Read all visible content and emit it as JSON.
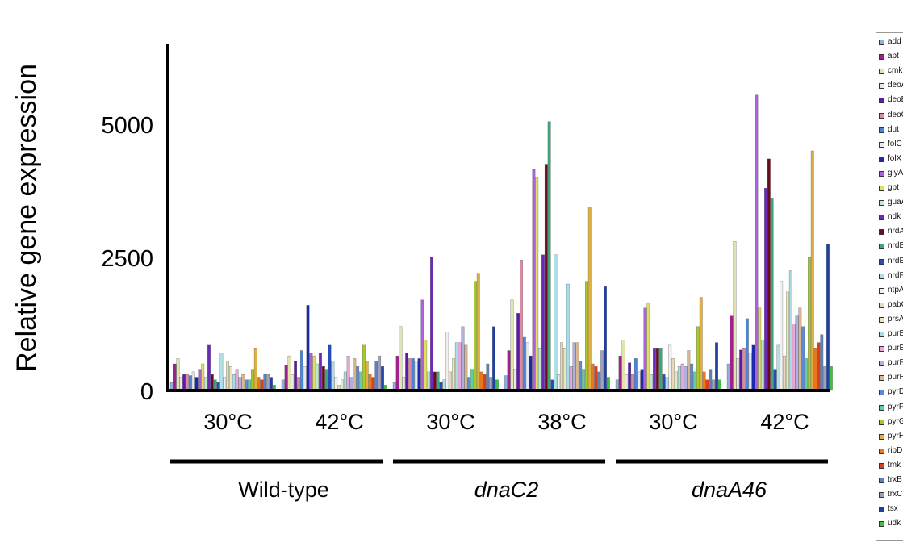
{
  "chart_data": {
    "type": "bar",
    "ylabel": "Relative gene expression",
    "ylim": [
      0,
      6500
    ],
    "yticks": [
      0,
      2500,
      5000
    ],
    "grid": false,
    "legend_position": "right",
    "groups": [
      {
        "label": "Wild-type",
        "italic": false,
        "conditions": [
          "30°C",
          "42°C"
        ]
      },
      {
        "label": "dnaC2",
        "italic": true,
        "conditions": [
          "30°C",
          "38°C"
        ]
      },
      {
        "label": "dnaA46",
        "italic": true,
        "conditions": [
          "30°C",
          "42°C"
        ]
      }
    ],
    "categories": [
      "Wild-type 30°C",
      "Wild-type 42°C",
      "dnaC2 30°C",
      "dnaC2 38°C",
      "dnaA46 30°C",
      "dnaA46 42°C"
    ],
    "series": [
      {
        "name": "add",
        "color": "#8fb1d8",
        "values": [
          150,
          200,
          150,
          280,
          200,
          500
        ]
      },
      {
        "name": "apt",
        "color": "#a0208f",
        "values": [
          500,
          480,
          650,
          750,
          650,
          1400
        ]
      },
      {
        "name": "cmk",
        "color": "#e3e3b0",
        "values": [
          600,
          650,
          1200,
          1700,
          950,
          2800
        ]
      },
      {
        "name": "deoA",
        "color": "#e8e8e8",
        "values": [
          250,
          300,
          250,
          400,
          300,
          600
        ]
      },
      {
        "name": "deoB",
        "color": "#5b1aa8",
        "values": [
          300,
          550,
          700,
          1450,
          520,
          760
        ]
      },
      {
        "name": "deoC",
        "color": "#e08aa0",
        "values": [
          300,
          250,
          600,
          2450,
          300,
          800
        ]
      },
      {
        "name": "dut",
        "color": "#4a86d6",
        "values": [
          280,
          750,
          600,
          1000,
          600,
          1350
        ]
      },
      {
        "name": "folC",
        "color": "#e8e8f0",
        "values": [
          350,
          450,
          550,
          900,
          350,
          700
        ]
      },
      {
        "name": "folX",
        "color": "#1a2aa8",
        "values": [
          250,
          1600,
          600,
          650,
          400,
          850
        ]
      },
      {
        "name": "glyA",
        "color": "#b05ee0",
        "values": [
          400,
          700,
          1700,
          4150,
          1550,
          5550
        ]
      },
      {
        "name": "gpt",
        "color": "#e0e060",
        "values": [
          500,
          650,
          950,
          4000,
          1650,
          1550
        ]
      },
      {
        "name": "guaA",
        "color": "#c0e8d0",
        "values": [
          250,
          500,
          350,
          800,
          300,
          950
        ]
      },
      {
        "name": "ndk",
        "color": "#6a2ab8",
        "values": [
          850,
          700,
          2500,
          2550,
          800,
          3800
        ]
      },
      {
        "name": "nrdA",
        "color": "#6a0a1a",
        "values": [
          300,
          450,
          350,
          4250,
          800,
          4350
        ]
      },
      {
        "name": "nrdB",
        "color": "#3aa878",
        "values": [
          200,
          400,
          350,
          5050,
          800,
          3600
        ]
      },
      {
        "name": "nrdE",
        "color": "#2a4ab8",
        "values": [
          150,
          850,
          150,
          200,
          300,
          400
        ]
      },
      {
        "name": "nrdF",
        "color": "#b0e0e8",
        "values": [
          700,
          550,
          200,
          2550,
          250,
          850
        ]
      },
      {
        "name": "ntpA",
        "color": "#f0f0f0",
        "values": [
          250,
          250,
          1100,
          300,
          850,
          2050
        ]
      },
      {
        "name": "pabC",
        "color": "#e8d8c0",
        "values": [
          550,
          100,
          350,
          900,
          600,
          650
        ]
      },
      {
        "name": "prsA",
        "color": "#e8e8b8",
        "values": [
          450,
          200,
          600,
          800,
          350,
          1850
        ]
      },
      {
        "name": "purB",
        "color": "#a8dce8",
        "values": [
          300,
          350,
          900,
          2000,
          450,
          2250
        ]
      },
      {
        "name": "purE",
        "color": "#e8a8d8",
        "values": [
          400,
          650,
          900,
          450,
          500,
          1250
        ]
      },
      {
        "name": "purF",
        "color": "#b0b0e0",
        "values": [
          250,
          250,
          1200,
          900,
          450,
          1400
        ]
      },
      {
        "name": "purH",
        "color": "#d8b890",
        "values": [
          300,
          600,
          850,
          900,
          750,
          1550
        ]
      },
      {
        "name": "pyrD",
        "color": "#5a8ad8",
        "values": [
          200,
          450,
          250,
          550,
          500,
          1200
        ]
      },
      {
        "name": "pyrF",
        "color": "#60d0a0",
        "values": [
          200,
          350,
          400,
          400,
          350,
          600
        ]
      },
      {
        "name": "pyrG",
        "color": "#a8c830",
        "values": [
          400,
          850,
          2050,
          2050,
          1200,
          2500
        ]
      },
      {
        "name": "pyrH",
        "color": "#e0b040",
        "values": [
          800,
          550,
          2200,
          3450,
          1750,
          4500
        ]
      },
      {
        "name": "ribD",
        "color": "#e87820",
        "values": [
          250,
          300,
          350,
          500,
          350,
          800
        ]
      },
      {
        "name": "tmk",
        "color": "#d84020",
        "values": [
          200,
          250,
          300,
          450,
          200,
          900
        ]
      },
      {
        "name": "trxB",
        "color": "#6080c0",
        "values": [
          300,
          550,
          500,
          350,
          400,
          1050
        ]
      },
      {
        "name": "trxC",
        "color": "#a0a0b8",
        "values": [
          300,
          650,
          250,
          750,
          200,
          450
        ]
      },
      {
        "name": "tsx",
        "color": "#2040a0",
        "values": [
          250,
          450,
          1200,
          1950,
          900,
          2750
        ]
      },
      {
        "name": "udk",
        "color": "#40c040",
        "values": [
          100,
          100,
          200,
          250,
          200,
          450
        ]
      }
    ]
  }
}
